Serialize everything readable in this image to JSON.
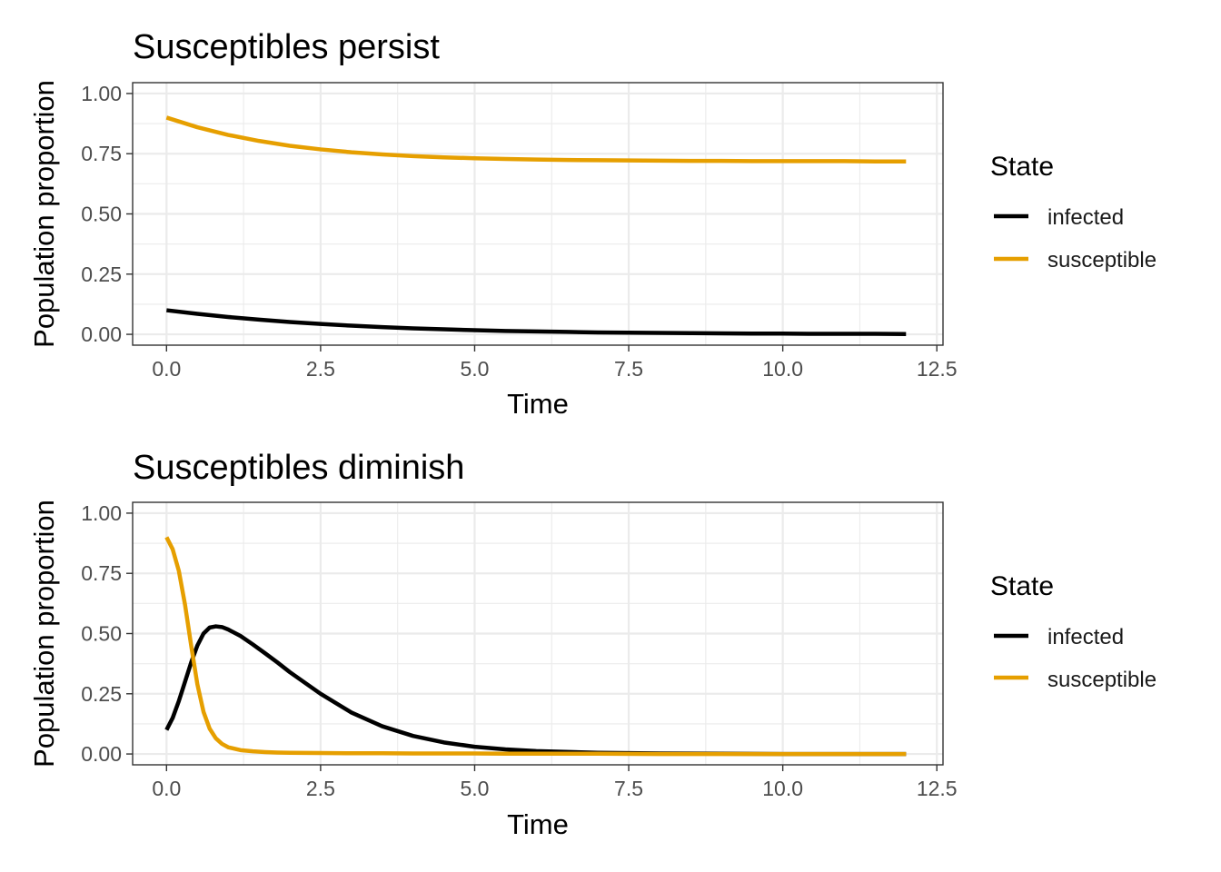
{
  "chart_data": [
    {
      "type": "line",
      "title": "Susceptibles persist",
      "xlabel": "Time",
      "ylabel": "Population proportion",
      "xlim": [
        -0.55,
        12.6
      ],
      "ylim": [
        -0.045,
        1.045
      ],
      "x_ticks": [
        0,
        2.5,
        5,
        7.5,
        10,
        12.5
      ],
      "x_tick_labels": [
        "0.0",
        "2.5",
        "5.0",
        "7.5",
        "10.0",
        "12.5"
      ],
      "y_ticks": [
        0,
        0.25,
        0.5,
        0.75,
        1
      ],
      "y_tick_labels": [
        "0.00",
        "0.25",
        "0.50",
        "0.75",
        "1.00"
      ],
      "grid": true,
      "legend": {
        "title": "State",
        "position": "right"
      },
      "x": [
        0,
        0.5,
        1,
        1.5,
        2,
        2.5,
        3,
        3.5,
        4,
        4.5,
        5,
        5.5,
        6,
        6.5,
        7,
        7.5,
        8,
        8.5,
        9,
        9.5,
        10,
        10.5,
        11,
        11.5,
        12
      ],
      "series": [
        {
          "name": "infected",
          "color": "#000000",
          "values": [
            0.1,
            0.085,
            0.072,
            0.061,
            0.051,
            0.043,
            0.036,
            0.03,
            0.025,
            0.021,
            0.017,
            0.014,
            0.012,
            0.01,
            0.008,
            0.007,
            0.006,
            0.005,
            0.004,
            0.003,
            0.003,
            0.002,
            0.002,
            0.002,
            0.001
          ]
        },
        {
          "name": "susceptible",
          "color": "#E69F00",
          "values": [
            0.9,
            0.86,
            0.828,
            0.803,
            0.783,
            0.768,
            0.756,
            0.747,
            0.74,
            0.735,
            0.731,
            0.728,
            0.726,
            0.724,
            0.723,
            0.722,
            0.721,
            0.72,
            0.72,
            0.719,
            0.719,
            0.719,
            0.719,
            0.718,
            0.718
          ]
        }
      ]
    },
    {
      "type": "line",
      "title": "Susceptibles diminish",
      "xlabel": "Time",
      "ylabel": "Population proportion",
      "xlim": [
        -0.55,
        12.6
      ],
      "ylim": [
        -0.045,
        1.045
      ],
      "x_ticks": [
        0,
        2.5,
        5,
        7.5,
        10,
        12.5
      ],
      "x_tick_labels": [
        "0.0",
        "2.5",
        "5.0",
        "7.5",
        "10.0",
        "12.5"
      ],
      "y_ticks": [
        0,
        0.25,
        0.5,
        0.75,
        1
      ],
      "y_tick_labels": [
        "0.00",
        "0.25",
        "0.50",
        "0.75",
        "1.00"
      ],
      "grid": true,
      "legend": {
        "title": "State",
        "position": "right"
      },
      "x": [
        0,
        0.1,
        0.2,
        0.3,
        0.4,
        0.5,
        0.6,
        0.7,
        0.8,
        0.9,
        1.0,
        1.2,
        1.4,
        1.6,
        1.8,
        2.0,
        2.5,
        3.0,
        3.5,
        4.0,
        4.5,
        5.0,
        5.5,
        6.0,
        7.0,
        8.0,
        9.0,
        10.0,
        11.0,
        12.0
      ],
      "series": [
        {
          "name": "infected",
          "color": "#000000",
          "values": [
            0.1,
            0.15,
            0.22,
            0.3,
            0.38,
            0.45,
            0.5,
            0.525,
            0.53,
            0.527,
            0.517,
            0.49,
            0.455,
            0.418,
            0.38,
            0.34,
            0.25,
            0.172,
            0.115,
            0.075,
            0.048,
            0.03,
            0.019,
            0.012,
            0.005,
            0.002,
            0.001,
            0.0,
            0.0,
            0.0
          ]
        },
        {
          "name": "susceptible",
          "color": "#E69F00",
          "values": [
            0.9,
            0.85,
            0.76,
            0.62,
            0.45,
            0.29,
            0.175,
            0.105,
            0.065,
            0.042,
            0.028,
            0.016,
            0.011,
            0.008,
            0.006,
            0.005,
            0.004,
            0.003,
            0.003,
            0.002,
            0.002,
            0.002,
            0.001,
            0.001,
            0.001,
            0.0,
            0.0,
            0.0,
            0.0,
            0.0
          ]
        }
      ]
    }
  ]
}
